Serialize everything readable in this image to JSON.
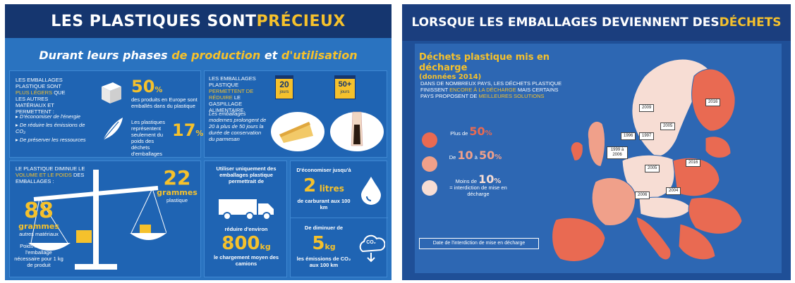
{
  "left": {
    "title_prefix": "LES PLASTIQUES SONT ",
    "title_highlight": "PRÉCIEUX",
    "subtitle_a": "Durant leurs phases ",
    "subtitle_b": "de production",
    "subtitle_c": " et ",
    "subtitle_d": "d'utilisation",
    "panel1": {
      "intro_a": "LES EMBALLAGES PLASTIQUE SONT",
      "intro_b": "PLUS LÉGERS",
      "intro_c": "QUE LES AUTRES MATÉRIAUX ET PERMETTENT :",
      "bullets": [
        "D'économiser de l'énergie",
        "De réduire les émissions de CO₂",
        "De préserver les ressources"
      ],
      "stat1_value": "50",
      "stat1_unit": "%",
      "stat1_text": "des produits en Europe sont emballés dans du plastique",
      "stat2_text": "Les plastiques représentent seulement du poids des déchets d'emballages",
      "stat2_value": "17",
      "stat2_unit": "%"
    },
    "panel2": {
      "intro_a": "LES EMBALLAGES PLASTIQUE",
      "intro_b": "PERMETTENT DE RÉDUIRE",
      "intro_c": "LE GASPILLAGE ALIMENTAIRE.",
      "body": "Les emballages modernes prolongent de 20 à plus de 50 jours la durée de conservation du parmesan",
      "cal1_value": "20",
      "cal1_unit": "jours",
      "cal2_value": "50+",
      "cal2_unit": "jours"
    },
    "panel3": {
      "intro_a": "LE PLASTIQUE DIMINUE LE",
      "intro_b": "VOLUME ET LE POIDS",
      "intro_c": "DES EMBALLAGES :",
      "right_value": "22",
      "right_unit": "grammes",
      "right_label": "plastique",
      "left_value": "88",
      "left_unit": "grammes",
      "left_label": "autres matériaux",
      "note": "Poids moyen de l'emballage nécessaire pour 1 kg de produit"
    },
    "panel4": {
      "text_a": "Utiliser uniquement des emballages plastique permettrait de",
      "text_b": "réduire d'environ",
      "value": "800",
      "unit": "kg",
      "text_c": "le chargement moyen des camions"
    },
    "panel5": {
      "fuel_intro": "D'économiser jusqu'à",
      "fuel_value": "2",
      "fuel_unit": "litres",
      "fuel_text": "de carburant aux 100 km",
      "co2_intro": "De diminuer de",
      "co2_value": "5",
      "co2_unit": "kg",
      "co2_text": "les émissions de CO₂ aux 100 km",
      "co2_icon_label": "CO₂"
    }
  },
  "right": {
    "title_prefix": "LORSQUE LES EMBALLAGES DEVIENNENT DES ",
    "title_highlight": "DÉCHETS",
    "heading": "Déchets plastique mis en décharge",
    "heading_sub": "(données 2014)",
    "intro_a": "DANS DE NOMBREUX PAYS, LES DÉCHETS PLASTIQUE FINISSENT",
    "intro_b": "ENCORE À LA DÉCHARGE",
    "intro_c": "MAIS CERTAINS PAYS PROPOSENT DE",
    "intro_d": "MEILLEURES SOLUTIONS",
    "legend": [
      {
        "pre": "Plus de",
        "num": "50",
        "suf": "%",
        "color": "#e96a52"
      },
      {
        "pre": "De",
        "num": "10",
        "mid": "à",
        "num2": "50",
        "suf": "%",
        "color": "#f0a08a"
      },
      {
        "pre": "Moins de",
        "num": "10",
        "suf": "%",
        "note": "= interdiction de mise en décharge",
        "color": "#f7ddd4"
      }
    ],
    "ban_label": "Date de l'interdiction de mise en décharge",
    "map_years": [
      "2016",
      "2009",
      "2005",
      "1996",
      "1997",
      "1999 à 2006",
      "2005",
      "2016",
      "2004",
      "2006"
    ]
  },
  "colors": {
    "left_bg": "#2a73c0",
    "navy": "#15366f",
    "accent": "#f5c12c",
    "high": "#e96a52",
    "mid": "#f0a08a",
    "low": "#f7ddd4"
  }
}
